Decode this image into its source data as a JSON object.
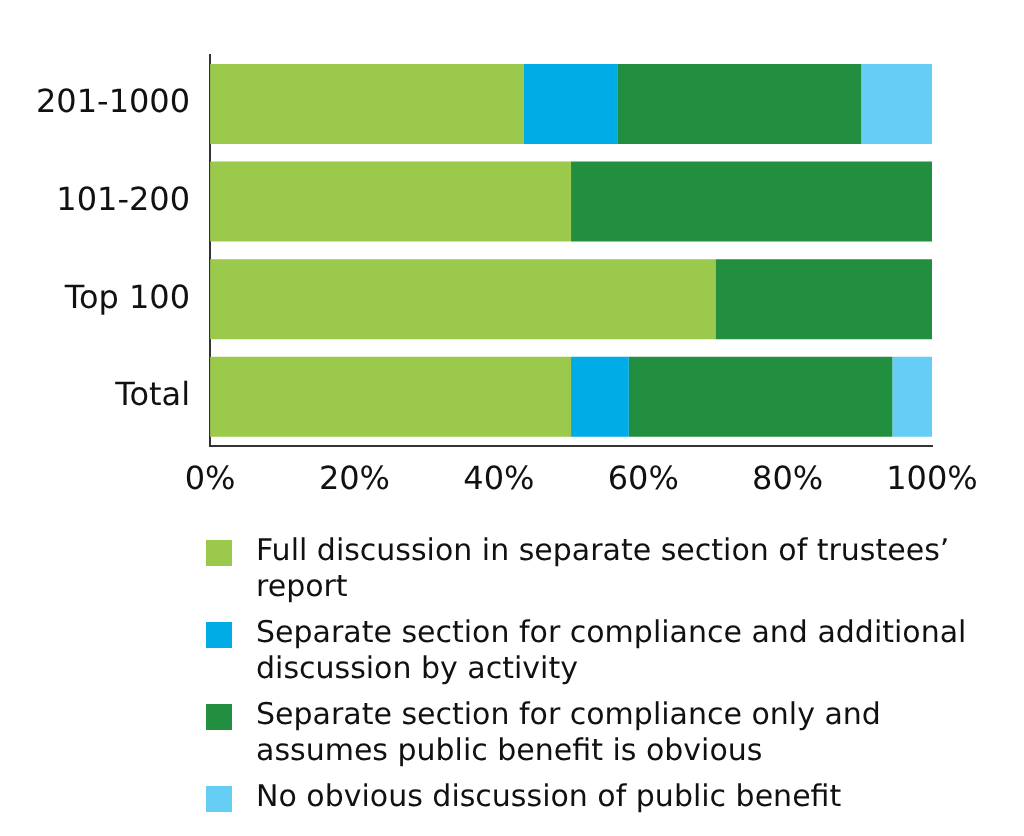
{
  "chart_data": {
    "type": "bar",
    "orientation": "horizontal",
    "stacked": true,
    "categories": [
      "201-1000",
      "101-200",
      "Top 100",
      "Total"
    ],
    "series": [
      {
        "name": "Full discussion in separate section of trustees’ report",
        "color": "#9bc94b",
        "values": [
          43.4,
          50,
          70,
          50
        ]
      },
      {
        "name": "Separate section for compliance and additional discussion by activity",
        "color": "#00ace6",
        "values": [
          13,
          0,
          0,
          8
        ]
      },
      {
        "name": "Separate section for compliance only and assumes public benefit is obvious",
        "color": "#218f3f",
        "values": [
          33.8,
          50,
          30,
          36.5
        ]
      },
      {
        "name": "No obvious discussion of public benefit",
        "color": "#66cdf5",
        "values": [
          9.8,
          0,
          0,
          5.5
        ]
      }
    ],
    "xlim": [
      0,
      100
    ],
    "xticks": [
      {
        "value": 0,
        "label": "0%"
      },
      {
        "value": 20,
        "label": "20%"
      },
      {
        "value": 40,
        "label": "40%"
      },
      {
        "value": 60,
        "label": "60%"
      },
      {
        "value": 80,
        "label": "80%"
      },
      {
        "value": 100,
        "label": "100%"
      }
    ],
    "grid": false,
    "legend": "bottom"
  }
}
